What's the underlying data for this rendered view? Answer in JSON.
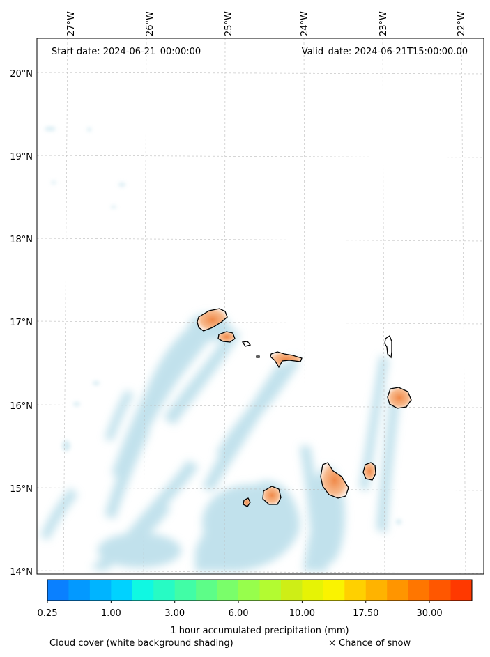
{
  "header": {
    "start_date": "Start date: 2024-06-21_00:00:00",
    "valid_date": "Valid_date: 2024-06-21T15:00:00.00"
  },
  "axes": {
    "lon_labels": [
      "27°W",
      "26°W",
      "25°W",
      "24°W",
      "23°W",
      "22°W"
    ],
    "lat_labels": [
      "20°N",
      "19°N",
      "18°N",
      "17°N",
      "16°N",
      "15°N",
      "14°N"
    ]
  },
  "colorbar": {
    "title": "1 hour accumulated precipitation (mm)",
    "tick_labels": [
      "0.25",
      "1.00",
      "3.00",
      "6.00",
      "10.00",
      "17.50",
      "30.00"
    ],
    "colors": [
      "#0a80ff",
      "#0399ff",
      "#00b4ff",
      "#00d2ff",
      "#10f8e2",
      "#27fbc4",
      "#41fda6",
      "#5dfd88",
      "#7afe6a",
      "#97fe4c",
      "#b3fb31",
      "#ceee16",
      "#e6f305",
      "#faf300",
      "#ffd000",
      "#ffb300",
      "#ff9500",
      "#ff7600",
      "#ff5700",
      "#ff3900"
    ]
  },
  "footer": {
    "cloud_note": "Cloud cover (white background shading)",
    "snow_note": "× Chance of snow"
  },
  "style": {
    "cloud_color": "#add8e6",
    "land_fill": "#ffffff",
    "rain_on_land": "#f4a46a",
    "grid_color": "#bbbbbb"
  }
}
